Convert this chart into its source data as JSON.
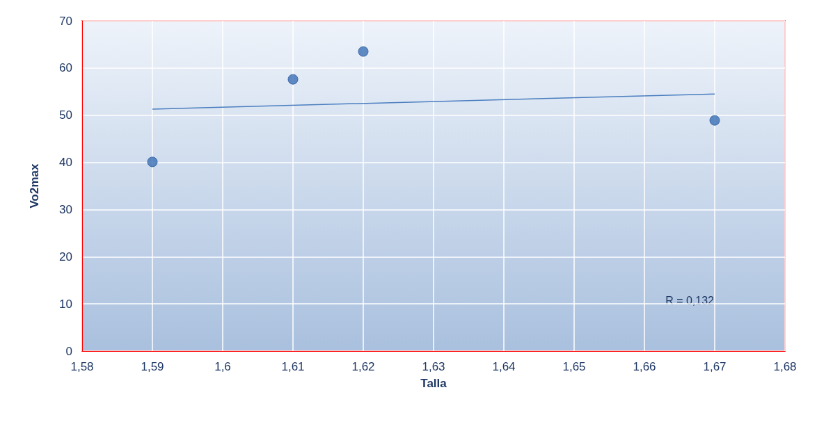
{
  "chart_data": {
    "type": "scatter",
    "xlabel": "Talla",
    "ylabel": "Vo2max",
    "x": [
      1.59,
      1.61,
      1.62,
      1.67
    ],
    "series": [
      {
        "type": "scatter",
        "color": "#3a6fb5",
        "marker": "circle",
        "values": [
          40.1,
          57.6,
          63.5,
          48.9
        ]
      },
      {
        "type": "line",
        "color": "#4a7ebf",
        "marker": "none",
        "x": [
          1.59,
          1.67
        ],
        "values": [
          51.3,
          54.5
        ]
      }
    ],
    "xlim": [
      1.58,
      1.68
    ],
    "xticks": [
      {
        "value": 1.58,
        "label": "1,58"
      },
      {
        "value": 1.59,
        "label": "1,59"
      },
      {
        "value": 1.6,
        "label": "1,6"
      },
      {
        "value": 1.61,
        "label": "1,61"
      },
      {
        "value": 1.62,
        "label": "1,62"
      },
      {
        "value": 1.63,
        "label": "1,63"
      },
      {
        "value": 1.64,
        "label": "1,64"
      },
      {
        "value": 1.65,
        "label": "1,65"
      },
      {
        "value": 1.66,
        "label": "1,66"
      },
      {
        "value": 1.67,
        "label": "1,67"
      },
      {
        "value": 1.68,
        "label": "1,68"
      }
    ],
    "ylim": [
      0,
      70
    ],
    "yticks": [
      0,
      10,
      20,
      30,
      40,
      50,
      60,
      70
    ],
    "grid": true,
    "annotations": [
      "R = 0,132"
    ]
  }
}
